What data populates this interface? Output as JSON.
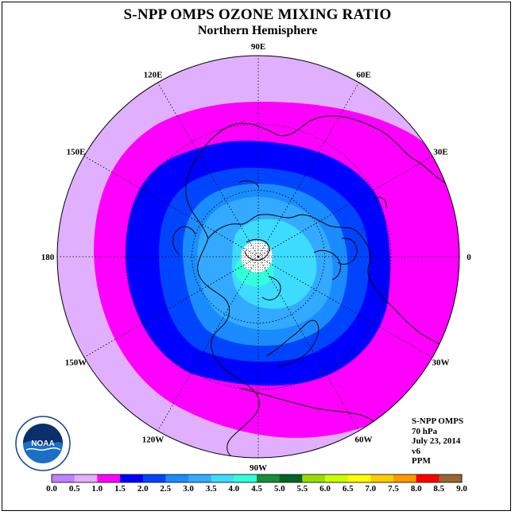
{
  "title": "S-NPP OMPS OZONE MIXING RATIO",
  "subtitle": "Northern Hemisphere",
  "longitude_labels": [
    {
      "text": "90E",
      "lon": 90
    },
    {
      "text": "60E",
      "lon": 60
    },
    {
      "text": "30E",
      "lon": 30
    },
    {
      "text": "0",
      "lon": 0
    },
    {
      "text": "30W",
      "lon": -30
    },
    {
      "text": "60W",
      "lon": -60
    },
    {
      "text": "90W",
      "lon": -90
    },
    {
      "text": "120W",
      "lon": -120
    },
    {
      "text": "150W",
      "lon": -150
    },
    {
      "text": "180",
      "lon": 180
    },
    {
      "text": "150E",
      "lon": 150
    },
    {
      "text": "120E",
      "lon": 120
    }
  ],
  "info": {
    "instrument": "S-NPP OMPS",
    "level": "70 hPa",
    "date": "July 23, 2014",
    "version": "v6",
    "units": "PPM"
  },
  "logo": {
    "text": "NOAA",
    "ring_text": "NATIONAL OCEANIC AND ATMOSPHERIC ADMINISTRATION · U.S. DEPARTMENT OF COMMERCE"
  },
  "colorbar": {
    "labels": [
      "0.0",
      "0.5",
      "1.0",
      "1.5",
      "2.0",
      "2.5",
      "3.0",
      "3.5",
      "4.0",
      "4.5",
      "5.0",
      "5.5",
      "6.0",
      "6.5",
      "7.0",
      "7.5",
      "8.0",
      "8.5",
      "9.0"
    ],
    "colors": [
      "#c080ff",
      "#e0b0ff",
      "#ff00ff",
      "#0000ff",
      "#0044ff",
      "#1a8cff",
      "#33aaff",
      "#3ddcff",
      "#33ffdd",
      "#1a8c3a",
      "#006622",
      "#99dd00",
      "#ccff00",
      "#ffff00",
      "#ffcc00",
      "#ff9900",
      "#ff0000",
      "#996633"
    ]
  },
  "chart_data": {
    "type": "heatmap",
    "title": "S-NPP OMPS OZONE MIXING RATIO",
    "subtitle": "Northern Hemisphere",
    "units": "PPM",
    "projection": "north polar stereographic",
    "levels": [
      0.0,
      0.5,
      1.0,
      1.5,
      2.0,
      2.5,
      3.0,
      3.5,
      4.0,
      4.5,
      5.0,
      5.5,
      6.0,
      6.5,
      7.0,
      7.5,
      8.0,
      8.5,
      9.0
    ],
    "bands": [
      {
        "range": [
          0.5,
          1.0
        ],
        "color": "#e0b0ff",
        "region": "outer ring"
      },
      {
        "range": [
          1.0,
          1.5
        ],
        "color": "#ff00ff"
      },
      {
        "range": [
          1.5,
          2.0
        ],
        "color": "#0000ff"
      },
      {
        "range": [
          2.0,
          2.5
        ],
        "color": "#0044ff"
      },
      {
        "range": [
          2.5,
          3.0
        ],
        "color": "#1a8cff"
      },
      {
        "range": [
          3.0,
          3.5
        ],
        "color": "#33aaff"
      },
      {
        "range": [
          3.5,
          4.0
        ],
        "color": "#3ddcff"
      },
      {
        "range": [
          4.0,
          4.5
        ],
        "color": "#33ffdd",
        "region": "near pole"
      }
    ]
  }
}
